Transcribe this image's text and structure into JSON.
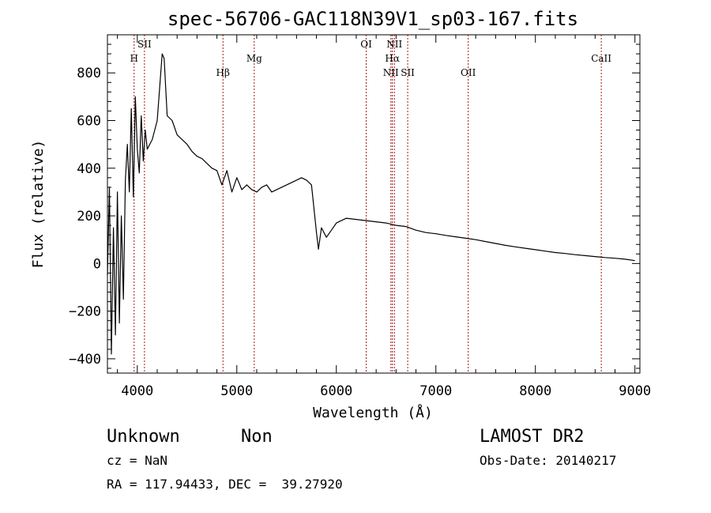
{
  "chart_data": {
    "type": "line",
    "title": "spec-56706-GAC118N39V1_sp03-167.fits",
    "xlabel": "Wavelength (Å)",
    "ylabel": "Flux (relative)",
    "xlim": [
      3700,
      9050
    ],
    "ylim": [
      -460,
      960
    ],
    "x_ticks": [
      "4000",
      "5000",
      "6000",
      "7000",
      "8000",
      "9000"
    ],
    "y_ticks": [
      "-400",
      "-200",
      "0",
      "200",
      "400",
      "600",
      "800"
    ],
    "y_tick_values": [
      -400,
      -200,
      0,
      200,
      400,
      600,
      800
    ],
    "x_tick_values": [
      4000,
      5000,
      6000,
      7000,
      8000,
      9000
    ],
    "grid": false,
    "line_color": "#000000",
    "marker_color": "#a31515",
    "spectral_lines": [
      {
        "label": "H",
        "x": 3968,
        "row": 1
      },
      {
        "label": "SII",
        "x": 4072,
        "row": 0
      },
      {
        "label": "Hβ",
        "x": 4861,
        "row": 2
      },
      {
        "label": "Mg",
        "x": 5175,
        "row": 1
      },
      {
        "label": "OI",
        "x": 6300,
        "row": 0
      },
      {
        "label": "NII",
        "x": 6548,
        "row": 2
      },
      {
        "label": "Hα",
        "x": 6563,
        "row": 1
      },
      {
        "label": "NII",
        "x": 6583,
        "row": 0
      },
      {
        "label": "SII",
        "x": 6717,
        "row": 2
      },
      {
        "label": "OII",
        "x": 7325,
        "row": 2
      },
      {
        "label": "CaII",
        "x": 8662,
        "row": 1
      }
    ],
    "series": [
      {
        "x": [
          3700,
          3720,
          3740,
          3760,
          3780,
          3800,
          3820,
          3840,
          3860,
          3880,
          3900,
          3920,
          3940,
          3960,
          3980,
          4000,
          4020,
          4040,
          4060,
          4080,
          4100,
          4150,
          4200,
          4250,
          4270,
          4300,
          4350,
          4400,
          4450,
          4500,
          4550,
          4600,
          4650,
          4700,
          4750,
          4800,
          4850,
          4900,
          4950,
          5000,
          5050,
          5100,
          5150,
          5200,
          5250,
          5300,
          5350,
          5400,
          5450,
          5500,
          5550,
          5600,
          5650,
          5700,
          5750,
          5800,
          5820,
          5850,
          5900,
          5950,
          6000,
          6100,
          6200,
          6300,
          6400,
          6500,
          6600,
          6700,
          6800,
          6900,
          7000,
          7100,
          7200,
          7300,
          7400,
          7500,
          7600,
          7700,
          7800,
          7900,
          8000,
          8100,
          8200,
          8300,
          8400,
          8500,
          8600,
          8700,
          8800,
          8900,
          9000
        ],
        "y": [
          -50,
          320,
          -380,
          150,
          -300,
          300,
          -250,
          200,
          -150,
          350,
          500,
          300,
          650,
          280,
          700,
          480,
          380,
          620,
          430,
          560,
          480,
          520,
          600,
          880,
          860,
          620,
          600,
          540,
          520,
          500,
          470,
          450,
          440,
          420,
          400,
          390,
          330,
          390,
          300,
          360,
          310,
          330,
          310,
          300,
          320,
          330,
          300,
          310,
          320,
          330,
          340,
          350,
          360,
          350,
          330,
          130,
          60,
          150,
          110,
          140,
          170,
          190,
          185,
          180,
          175,
          170,
          160,
          155,
          140,
          130,
          125,
          118,
          112,
          106,
          100,
          92,
          84,
          76,
          70,
          64,
          58,
          52,
          46,
          42,
          37,
          33,
          29,
          25,
          22,
          18,
          12
        ]
      }
    ]
  },
  "info": {
    "class": "Unknown",
    "subclass": "Non",
    "survey": "LAMOST DR2",
    "cz": "cz = NaN",
    "obs_date": "Obs-Date: 20140217",
    "radec": "RA = 117.94433, DEC =  39.27920"
  }
}
